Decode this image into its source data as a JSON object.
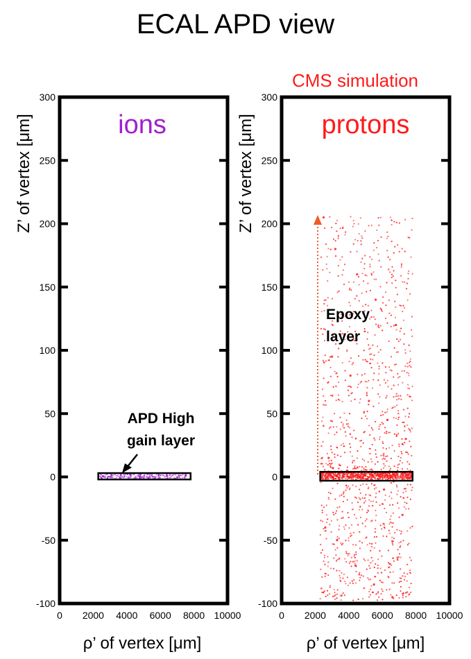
{
  "page_title": "ECAL APD view",
  "watermark": "CMS simulation",
  "colors": {
    "ions": "#a020d0",
    "protons": "#ff1a1a",
    "frame": "#000000",
    "arrow": "#f05a28"
  },
  "chart_data": [
    {
      "type": "scatter",
      "panel_label": "ions",
      "xlabel": "ρ’ of vertex [μm]",
      "ylabel": "Z’ of vertex [μm]",
      "xlim": [
        0,
        10000
      ],
      "ylim": [
        -100,
        300
      ],
      "x_ticks": [
        "0",
        "2000",
        "4000",
        "6000",
        "8000",
        "10000"
      ],
      "y_ticks": [
        "300",
        "250",
        "200",
        "150",
        "100",
        "50",
        "0",
        "-50",
        "-100"
      ],
      "layer_box": {
        "x": [
          2300,
          7800
        ],
        "z": [
          -2,
          3
        ]
      },
      "series": [
        {
          "values_description_points": [
            [
              2600,
              0.5
            ],
            [
              3100,
              1.2
            ],
            [
              3600,
              -0.8
            ],
            [
              4200,
              1.8
            ],
            [
              4800,
              0.2
            ],
            [
              5300,
              -1.0
            ],
            [
              5900,
              1.5
            ],
            [
              6400,
              0.7
            ],
            [
              7000,
              -0.4
            ],
            [
              7500,
              1.0
            ]
          ]
        }
      ],
      "annotation": "APD High gain layer"
    },
    {
      "type": "scatter",
      "panel_label": "protons",
      "xlabel": "ρ’ of vertex [μm]",
      "ylabel": "Z’ of vertex [μm]",
      "xlim": [
        0,
        10000
      ],
      "ylim": [
        -100,
        300
      ],
      "x_ticks": [
        "0",
        "2000",
        "4000",
        "6000",
        "8000",
        "10000"
      ],
      "y_ticks": [
        "300",
        "250",
        "200",
        "150",
        "100",
        "50",
        "0",
        "-50",
        "-100"
      ],
      "layer_box": {
        "x": [
          2300,
          7800
        ],
        "z": [
          -3,
          4
        ]
      },
      "series": [
        {
          "values_description_points": [
            [
              2500,
              205
            ],
            [
              3200,
              180
            ],
            [
              4500,
              160
            ],
            [
              5600,
              140
            ],
            [
              6800,
              120
            ],
            [
              3000,
              95
            ],
            [
              4100,
              80
            ],
            [
              5200,
              60
            ],
            [
              6300,
              45
            ],
            [
              7400,
              30
            ],
            [
              2800,
              15
            ],
            [
              3900,
              5
            ],
            [
              5000,
              1
            ],
            [
              6100,
              -10
            ],
            [
              7200,
              -30
            ],
            [
              3300,
              -50
            ],
            [
              4400,
              -70
            ],
            [
              5500,
              -85
            ],
            [
              6600,
              -95
            ],
            [
              2600,
              -40
            ]
          ]
        }
      ],
      "annotation": "Epoxy layer"
    }
  ]
}
